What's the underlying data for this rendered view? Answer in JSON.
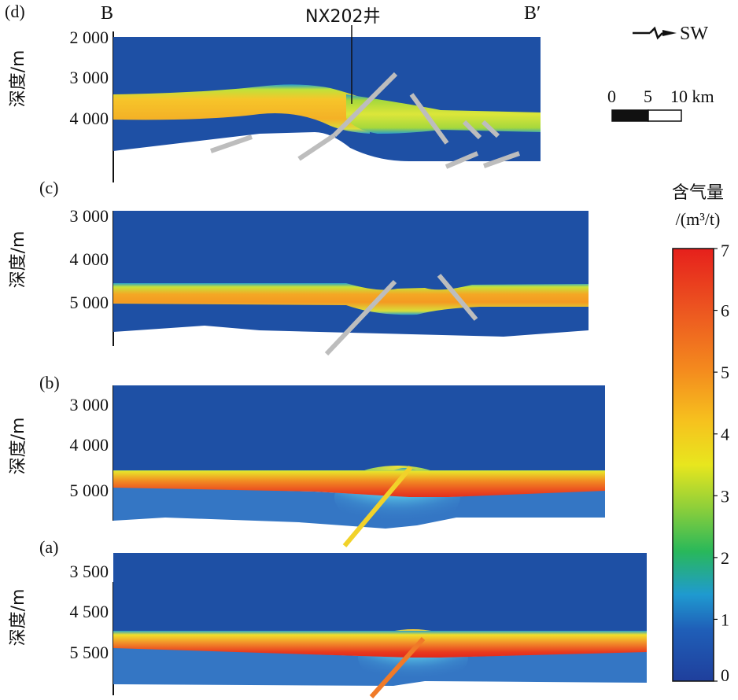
{
  "figure": {
    "panels": [
      {
        "id": "d",
        "label": "(d)",
        "ylabel": "深度/m",
        "yticks": [
          "2 000",
          "3 000",
          "4 000"
        ],
        "end_left": "B",
        "end_right": "B′",
        "well": "NX202井"
      },
      {
        "id": "c",
        "label": "(c)",
        "ylabel": "深度/m",
        "yticks": [
          "3 000",
          "4 000",
          "5 000"
        ]
      },
      {
        "id": "b",
        "label": "(b)",
        "ylabel": "深度/m",
        "yticks": [
          "3 000",
          "4 000",
          "5 000"
        ]
      },
      {
        "id": "a",
        "label": "(a)",
        "ylabel": "深度/m",
        "yticks": [
          "3 500",
          "4 500",
          "5 500"
        ]
      }
    ],
    "direction": {
      "label": "SW",
      "icon": "direction-arrow-icon"
    },
    "scalebar": {
      "ticks": [
        "0",
        "5",
        "10 km"
      ],
      "max_km": 10
    },
    "colorbar": {
      "title_line1": "含气量",
      "title_line2": "/(m³/t)",
      "min": 0,
      "max": 7,
      "ticks": [
        "0",
        "1",
        "2",
        "3",
        "4",
        "5",
        "6",
        "7"
      ],
      "colors": [
        "#1f4fa8",
        "#1f8fd8",
        "#2fbf5a",
        "#9fd43a",
        "#f2e51c",
        "#f7a21c",
        "#ef5a1c",
        "#e8261c"
      ]
    },
    "colors": {
      "background_blue": "#1e50a5",
      "lower_blue": "#3476c4",
      "fault_gray": "#bdbdbd"
    }
  }
}
